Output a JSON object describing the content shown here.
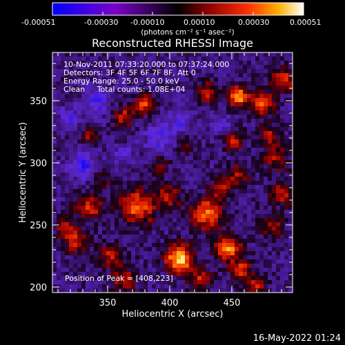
{
  "colorbar": {
    "ticks": [
      "-0.00051",
      "-0.00030",
      "-0.00010",
      "0.00010",
      "0.00030",
      "0.00051"
    ],
    "unit_label": "(photons cm⁻² s⁻¹ asec⁻²)",
    "colors": [
      "#0000ff",
      "#7a00c8",
      "#000000",
      "#8c0000",
      "#ff3000",
      "#ffb000",
      "#ffffff"
    ]
  },
  "image": {
    "title": "Reconstructed RHESSI Image",
    "info_lines": [
      "10-Nov-2011 07:33:20.000 to 07:37:24.000",
      "Detectors: 3F 4F 5F 6F 7F 8F, Att 0",
      "Energy Range: 25.0 - 50.0 keV",
      "Clean     Total counts: 1.08E+04"
    ],
    "peak_label": "Position of Peak = [408,223]",
    "x_axis_label": "Heliocentric X (arcsec)",
    "y_axis_label": "Heliocentric Y (arcsec)",
    "x_ticks": [
      "350",
      "400",
      "450"
    ],
    "y_ticks": [
      "350",
      "300",
      "250",
      "200"
    ],
    "x_range": [
      304,
      495
    ],
    "y_range": [
      197,
      390
    ]
  },
  "footer": {
    "timestamp": "16-May-2022 01:24"
  }
}
